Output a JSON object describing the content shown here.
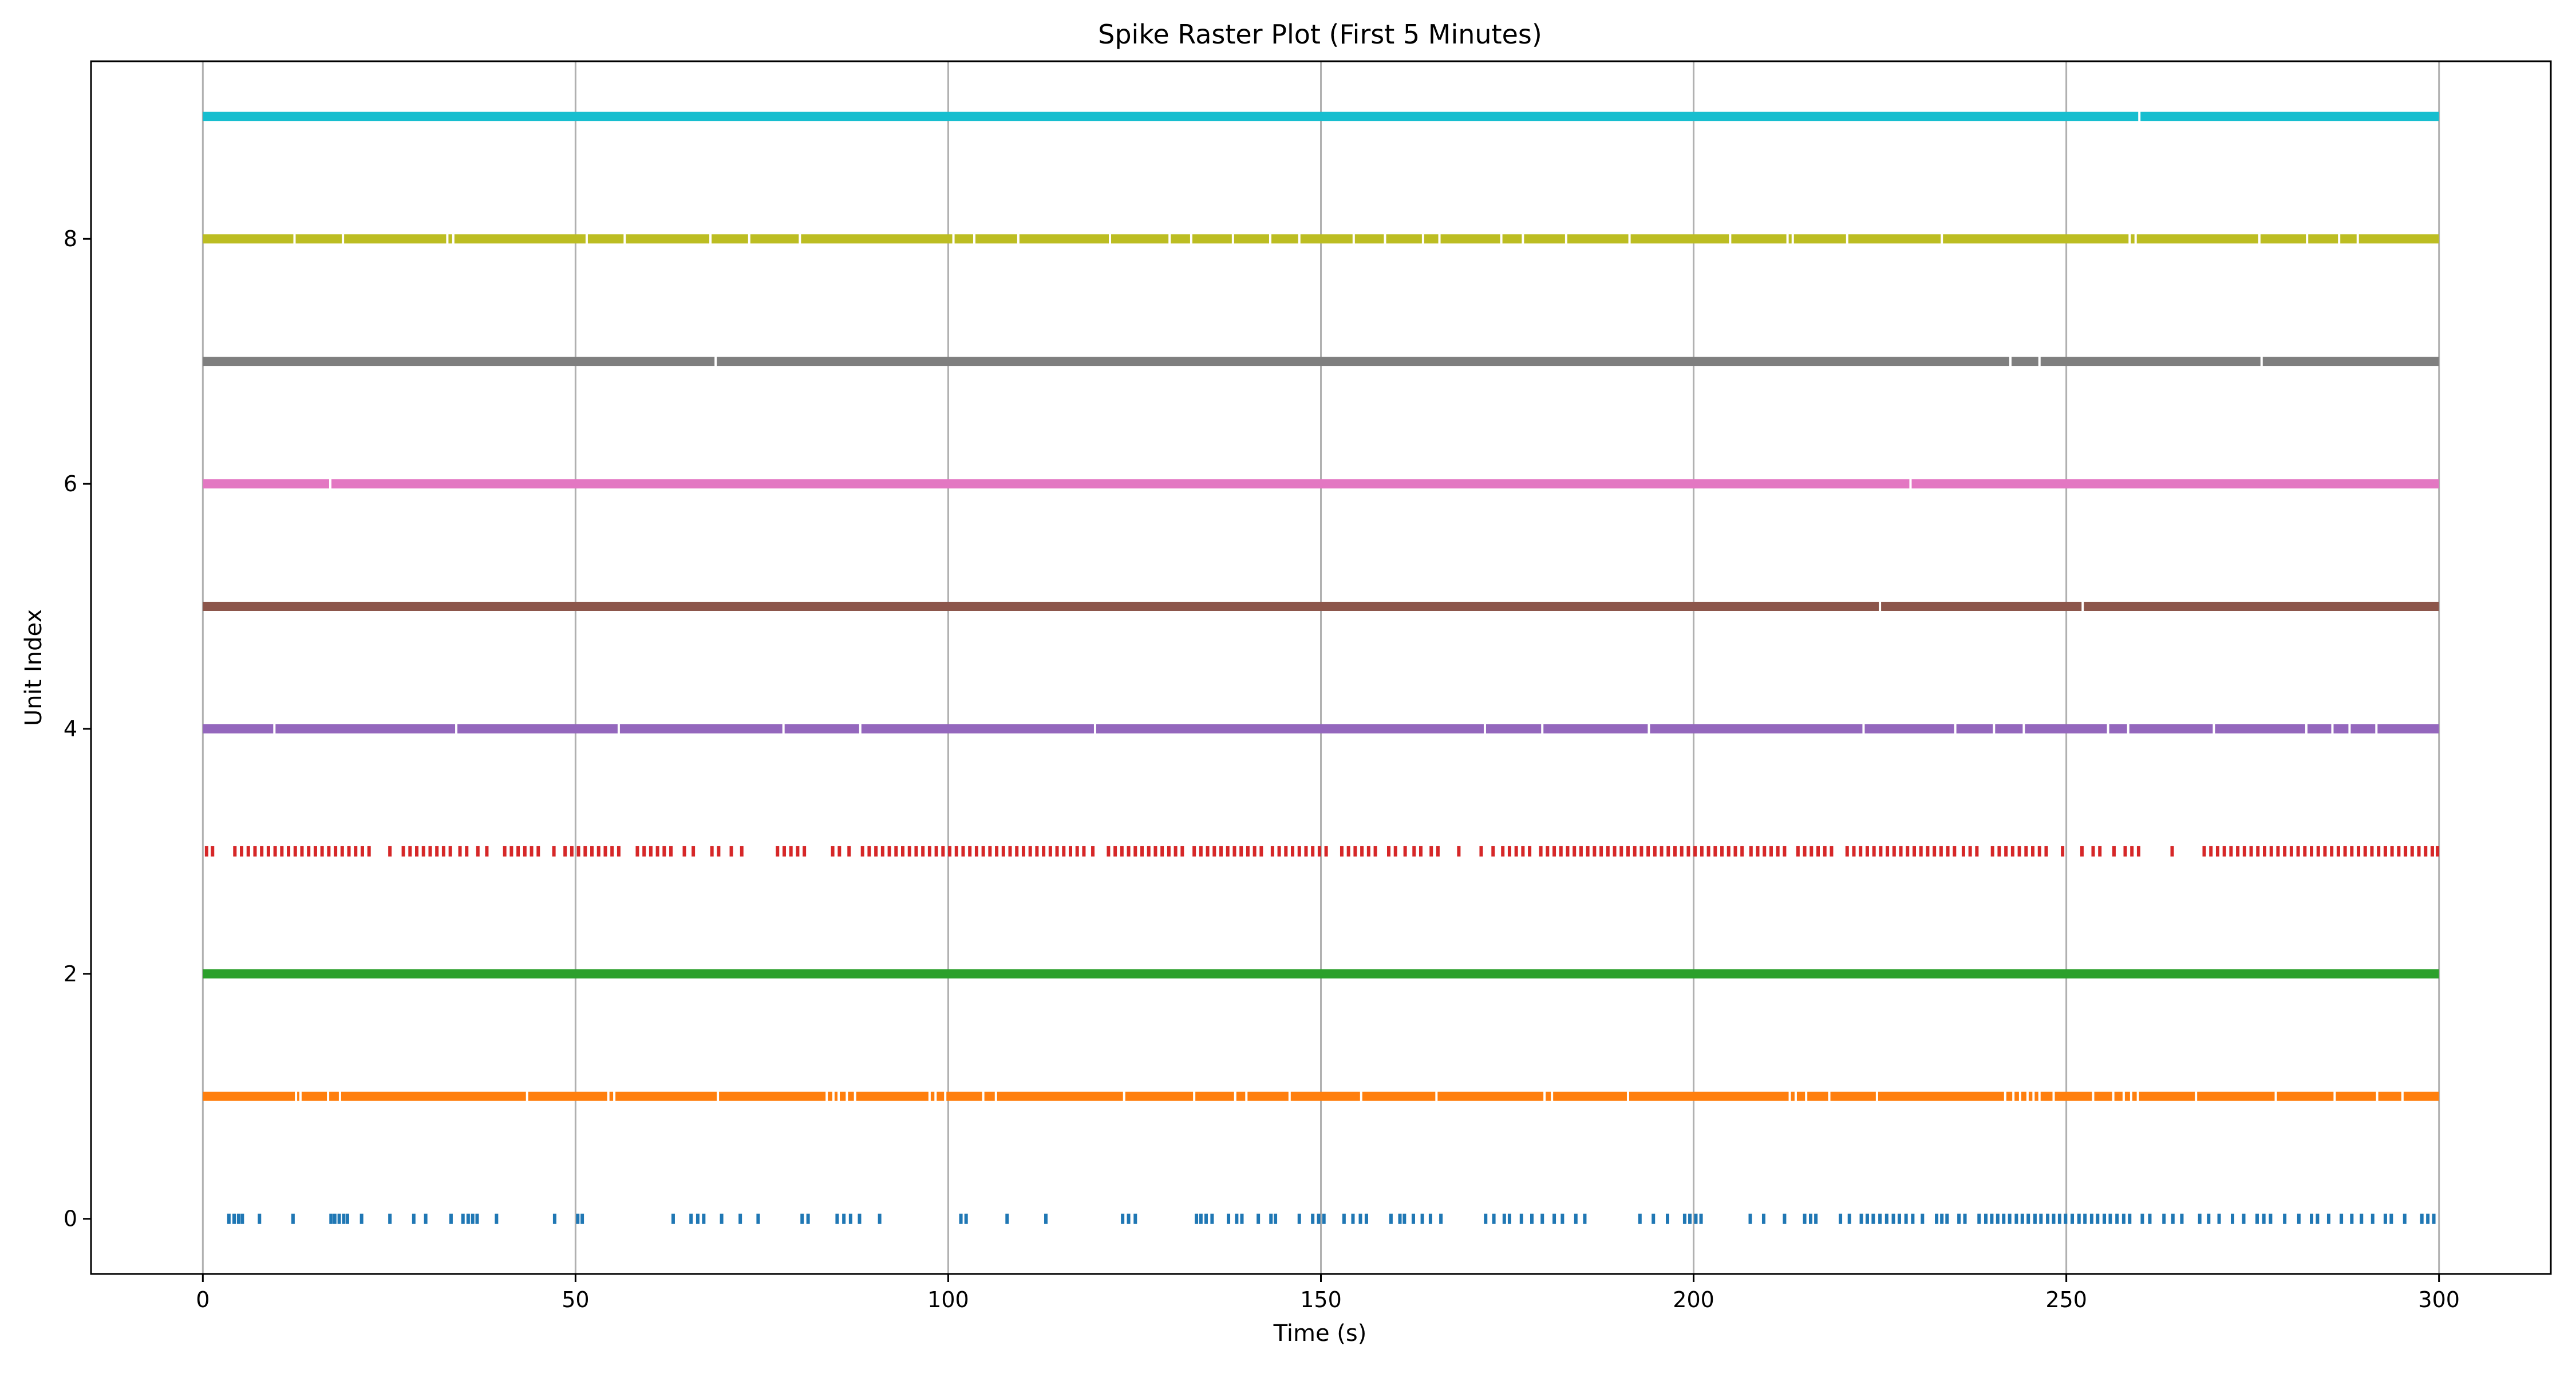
{
  "chart_data": {
    "type": "scatter",
    "title": "Spike Raster Plot (First 5 Minutes)",
    "xlabel": "Time (s)",
    "ylabel": "Unit Index",
    "xlim": [
      -15,
      315
    ],
    "ylim": [
      -0.45,
      9.45
    ],
    "x_ticks": [
      0,
      50,
      100,
      150,
      200,
      250,
      300
    ],
    "x_tick_labels": [
      "0",
      "50",
      "100",
      "150",
      "200",
      "250",
      "300"
    ],
    "y_ticks": [
      0,
      2,
      4,
      6,
      8
    ],
    "y_tick_labels": [
      "0",
      "2",
      "4",
      "6",
      "8"
    ],
    "grid": "x-axis vertical lines",
    "marker": "vertical tick",
    "series": [
      {
        "unit": 0,
        "color": "#1f77b4",
        "x": [
          3.5,
          4.2,
          4.8,
          5.3,
          7.6,
          12.1,
          17.2,
          17.7,
          18.3,
          18.9,
          19.4,
          21.3,
          25.1,
          28.3,
          29.9,
          33.3,
          34.9,
          35.6,
          36.2,
          36.8,
          39.4,
          47.2,
          50.3,
          50.9,
          63.1,
          65.5,
          66.4,
          67.2,
          69.6,
          72.1,
          74.5,
          80.4,
          81.2,
          85.1,
          86.0,
          86.9,
          88.1,
          90.8,
          101.7,
          102.4,
          107.9,
          113.1,
          123.4,
          124.2,
          125.1,
          133.3,
          133.9,
          134.6,
          135.4,
          137.6,
          138.7,
          139.4,
          141.6,
          143.3,
          143.9,
          147.1,
          148.9,
          149.7,
          150.4,
          153.1,
          154.3,
          155.3,
          156.1,
          159.4,
          160.6,
          161.2,
          162.4,
          163.6,
          164.7,
          166.1,
          172.1,
          173.2,
          174.6,
          175.3,
          176.9,
          178.3,
          179.7,
          181.3,
          182.4,
          184.2,
          185.4,
          192.8,
          194.6,
          196.5,
          198.8,
          199.5,
          200.3,
          201.0,
          207.6,
          209.4,
          212.2,
          214.9,
          215.7,
          216.4,
          219.7,
          220.9,
          222.5,
          223.3,
          224.1,
          225.0,
          225.9,
          226.8,
          227.6,
          228.5,
          229.4,
          230.7,
          232.6,
          233.3,
          234.0,
          235.6,
          236.4,
          238.3,
          239.2,
          240.0,
          240.8,
          241.6,
          242.4,
          243.3,
          244.1,
          244.9,
          245.8,
          246.6,
          247.5,
          248.3,
          249.1,
          249.9,
          250.8,
          251.7,
          252.5,
          253.4,
          254.2,
          255.1,
          255.9,
          256.8,
          257.7,
          258.5,
          260.2,
          261.2,
          263.1,
          264.3,
          265.5,
          267.9,
          269.1,
          270.5,
          272.3,
          273.8,
          275.6,
          276.5,
          277.4,
          279.3,
          281.2,
          282.9,
          283.7,
          285.2,
          286.9,
          288.3,
          289.6,
          291.1,
          292.8,
          293.6,
          295.4,
          297.7,
          298.5,
          299.3
        ]
      },
      {
        "unit": 1,
        "color": "#ff7f0e",
        "gaps": [
          12.5,
          13.1,
          16.8,
          18.4,
          43.5,
          54.4,
          55.2,
          69.1,
          83.7,
          84.6,
          85.3,
          86.4,
          87.5,
          97.5,
          98.3,
          99.6,
          104.7,
          106.4,
          123.6,
          133.0,
          138.5,
          140.0,
          145.8,
          155.4,
          165.5,
          180.0,
          181.0,
          191.2,
          212.9,
          213.7,
          215.1,
          218.2,
          224.6,
          241.8,
          242.9,
          243.8,
          244.8,
          245.6,
          246.4,
          248.3,
          253.6,
          256.3,
          257.7,
          258.7,
          259.6,
          267.4,
          278.1,
          286.0,
          291.7,
          295.1
        ]
      },
      {
        "unit": 2,
        "color": "#2ca02c",
        "gaps": []
      },
      {
        "unit": 3,
        "color": "#d62728",
        "x": [
          0.5,
          1.3,
          4.3,
          5.2,
          6.1,
          7.0,
          7.9,
          8.8,
          9.7,
          10.6,
          11.5,
          12.4,
          13.3,
          14.2,
          15.1,
          16.0,
          16.9,
          17.8,
          18.7,
          19.6,
          20.5,
          21.4,
          22.3,
          25.1,
          26.9,
          27.8,
          28.7,
          29.6,
          30.5,
          31.4,
          32.3,
          33.2,
          34.5,
          35.4,
          36.9,
          38.1,
          40.5,
          41.4,
          42.3,
          43.2,
          44.1,
          45.0,
          47.1,
          48.6,
          49.5,
          50.4,
          51.3,
          52.2,
          53.1,
          54.0,
          54.9,
          55.8,
          58.3,
          59.2,
          60.1,
          61.0,
          61.9,
          62.8,
          64.6,
          65.8,
          68.3,
          69.2,
          70.9,
          72.3,
          77.1,
          78.0,
          78.9,
          79.8,
          80.7,
          84.5,
          85.4,
          86.7,
          88.5,
          89.4,
          90.3,
          91.2,
          92.1,
          93.0,
          93.9,
          94.8,
          95.7,
          96.6,
          97.5,
          98.4,
          99.3,
          100.2,
          101.1,
          102.0,
          102.9,
          103.8,
          104.7,
          105.6,
          106.5,
          107.4,
          108.3,
          109.2,
          110.1,
          111.0,
          111.9,
          112.8,
          113.7,
          114.6,
          115.5,
          116.4,
          117.3,
          118.2,
          119.4,
          121.5,
          122.4,
          123.3,
          124.2,
          125.1,
          126.0,
          126.9,
          127.8,
          128.7,
          129.6,
          130.5,
          131.4,
          133.0,
          133.9,
          134.8,
          135.7,
          136.6,
          137.5,
          138.4,
          139.3,
          140.2,
          141.1,
          142.0,
          143.5,
          144.4,
          145.3,
          146.2,
          147.1,
          148.0,
          148.9,
          149.8,
          150.7,
          152.8,
          153.7,
          154.6,
          155.5,
          156.4,
          157.3,
          159.1,
          160.0,
          161.3,
          162.5,
          163.4,
          164.8,
          165.7,
          168.5,
          171.5,
          173.1,
          174.4,
          175.3,
          176.2,
          177.1,
          178.0,
          179.5,
          180.4,
          181.3,
          182.2,
          183.1,
          184.0,
          184.9,
          185.8,
          186.7,
          187.6,
          188.5,
          189.4,
          190.3,
          191.2,
          192.1,
          193.0,
          193.9,
          194.8,
          195.7,
          196.6,
          197.5,
          198.4,
          199.3,
          200.2,
          201.1,
          202.0,
          202.9,
          203.8,
          204.7,
          205.6,
          206.5,
          207.7,
          208.6,
          209.5,
          210.4,
          211.3,
          212.2,
          214.0,
          214.9,
          215.8,
          216.7,
          217.6,
          218.5,
          220.6,
          221.5,
          222.4,
          223.3,
          224.2,
          225.1,
          226.0,
          226.9,
          227.8,
          228.7,
          229.6,
          230.5,
          231.4,
          232.3,
          233.2,
          234.1,
          235.0,
          236.2,
          237.1,
          238.0,
          240.1,
          241.0,
          241.9,
          242.8,
          243.7,
          244.6,
          245.5,
          246.4,
          247.3,
          249.5,
          252.1,
          253.6,
          254.5,
          256.4,
          257.9,
          258.8,
          259.7,
          264.2,
          268.5,
          269.4,
          270.3,
          271.2,
          272.1,
          273.0,
          273.9,
          274.8,
          275.7,
          276.6,
          277.5,
          278.4,
          279.3,
          280.2,
          281.1,
          282.0,
          282.9,
          283.8,
          284.7,
          285.6,
          286.5,
          287.4,
          288.3,
          289.2,
          290.1,
          291.0,
          291.9,
          292.8,
          293.7,
          294.6,
          295.5,
          296.4,
          297.3,
          298.2,
          299.1,
          299.8
        ]
      },
      {
        "unit": 4,
        "color": "#9467bd",
        "gaps": [
          9.6,
          34.0,
          55.8,
          77.9,
          88.2,
          119.7,
          172.0,
          179.7,
          194.0,
          222.8,
          235.1,
          240.3,
          244.3,
          255.6,
          258.3,
          269.8,
          282.2,
          285.7,
          288.0,
          291.6
        ]
      },
      {
        "unit": 5,
        "color": "#8c564b",
        "gaps": [
          225.0,
          252.2
        ]
      },
      {
        "unit": 6,
        "color": "#e377c2",
        "gaps": [
          17.1,
          229.1
        ]
      },
      {
        "unit": 7,
        "color": "#7f7f7f",
        "gaps": [
          68.8,
          242.5,
          246.4,
          276.2
        ]
      },
      {
        "unit": 8,
        "color": "#bcbd22",
        "gaps": [
          12.3,
          18.8,
          32.8,
          33.6,
          51.5,
          56.6,
          68.1,
          73.3,
          80.1,
          100.7,
          103.5,
          109.4,
          121.7,
          129.7,
          132.6,
          138.2,
          143.2,
          147.1,
          154.4,
          158.6,
          163.7,
          165.9,
          174.2,
          177.1,
          182.9,
          191.4,
          204.9,
          212.6,
          213.3,
          220.6,
          233.3,
          258.5,
          259.3,
          275.9,
          282.3,
          286.6,
          289.1
        ]
      },
      {
        "unit": 9,
        "color": "#17becf",
        "gaps": [
          259.8
        ]
      }
    ]
  }
}
